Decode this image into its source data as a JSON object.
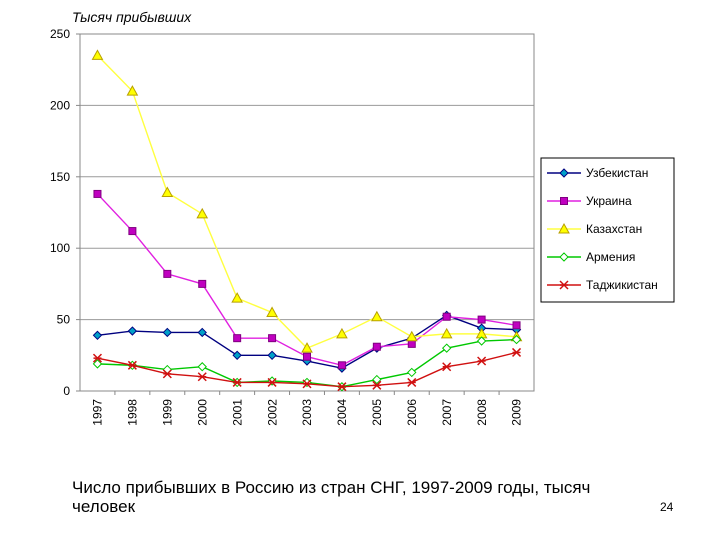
{
  "chart_data": {
    "type": "line",
    "ylabel": "Тысяч прибывших",
    "ylim": [
      0,
      250
    ],
    "yticks": [
      0,
      50,
      100,
      150,
      200,
      250
    ],
    "grid": "horizontal",
    "legend_position": "right",
    "x": [
      "1997",
      "1998",
      "1999",
      "2000",
      "2001",
      "2002",
      "2003",
      "2004",
      "2005",
      "2006",
      "2007",
      "2008",
      "2009"
    ],
    "series": [
      {
        "name": "Узбекистан",
        "color": "#000080",
        "marker": "diamond",
        "marker_color": "#00a0c8",
        "values": [
          39,
          42,
          41,
          41,
          25,
          25,
          21,
          16,
          30,
          37,
          53,
          44,
          43
        ]
      },
      {
        "name": "Украина",
        "color": "#e020e0",
        "marker": "square",
        "marker_color": "#c000c0",
        "values": [
          138,
          112,
          82,
          75,
          37,
          37,
          24,
          18,
          31,
          33,
          52,
          50,
          46
        ]
      },
      {
        "name": "Казахстан",
        "color": "#ffff40",
        "marker": "triangle",
        "marker_color": "#ffff00",
        "values": [
          235,
          210,
          139,
          124,
          65,
          55,
          30,
          40,
          52,
          38,
          40,
          40,
          38
        ]
      },
      {
        "name": "Армения",
        "color": "#00c800",
        "marker": "diamond-open",
        "marker_color": "#00c800",
        "values": [
          19,
          18,
          15,
          17,
          6,
          7,
          6,
          3,
          8,
          13,
          30,
          35,
          36
        ]
      },
      {
        "name": "Таджикистан",
        "color": "#d01010",
        "marker": "star",
        "marker_color": "#d01010",
        "values": [
          23,
          18,
          12,
          10,
          6,
          6,
          5,
          3,
          4,
          6,
          17,
          21,
          27
        ]
      }
    ]
  },
  "caption": "Число прибывших в Россию из стран СНГ, 1997-2009 годы, тысяч человек",
  "slide_number": "24"
}
